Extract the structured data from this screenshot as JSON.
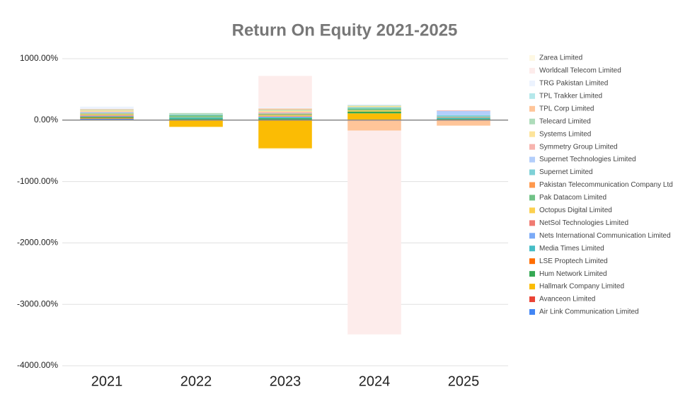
{
  "chart_data": {
    "type": "stacked-bar",
    "title": "Return On Equity 2021-2025",
    "categories": [
      "2021",
      "2022",
      "2023",
      "2024",
      "2025"
    ],
    "ylim": [
      -4000,
      1000
    ],
    "yticks": [
      {
        "value": -4000,
        "label": "-4000.00%"
      },
      {
        "value": -3000,
        "label": "-3000.00%"
      },
      {
        "value": -2000,
        "label": "-2000.00%"
      },
      {
        "value": -1000,
        "label": "-1000.00%"
      },
      {
        "value": 0,
        "label": "0.00%"
      },
      {
        "value": 1000,
        "label": "1000.00%"
      }
    ],
    "grid": true,
    "legend": "right",
    "series": [
      {
        "name": "Air Link Communication Limited",
        "color": "#4285f4",
        "values": [
          20,
          10,
          10,
          10,
          10
        ]
      },
      {
        "name": "Avanceon Limited",
        "color": "#ea4335",
        "values": [
          5,
          0,
          0,
          0,
          0
        ]
      },
      {
        "name": "Hallmark Company Limited",
        "color": "#fbbc04",
        "values": [
          10,
          -110,
          -460,
          100,
          0
        ]
      },
      {
        "name": "Hum Network Limited",
        "color": "#34a853",
        "values": [
          15,
          15,
          20,
          30,
          10
        ]
      },
      {
        "name": "LSE Proptech Limited",
        "color": "#ff6d01",
        "values": [
          5,
          0,
          0,
          0,
          0
        ]
      },
      {
        "name": "Media Times Limited",
        "color": "#46bdc6",
        "values": [
          5,
          20,
          15,
          0,
          20
        ]
      },
      {
        "name": "Nets International Communication Limited",
        "color": "#7baaf7",
        "values": [
          10,
          0,
          10,
          0,
          0
        ]
      },
      {
        "name": "NetSol Technologies Limited",
        "color": "#f07b72",
        "values": [
          10,
          0,
          10,
          0,
          0
        ]
      },
      {
        "name": "Octopus Digital Limited",
        "color": "#fcd04f",
        "values": [
          15,
          5,
          15,
          20,
          0
        ]
      },
      {
        "name": "Pak Datacom Limited",
        "color": "#71c287",
        "values": [
          10,
          30,
          15,
          30,
          0
        ]
      },
      {
        "name": "Pakistan Telecommunication Company Ltd",
        "color": "#ff994d",
        "values": [
          5,
          0,
          10,
          0,
          10
        ]
      },
      {
        "name": "Supernet Limited",
        "color": "#7ed1d7",
        "values": [
          10,
          15,
          10,
          20,
          30
        ]
      },
      {
        "name": "Supernet Technologies Limited",
        "color": "#b3cefb",
        "values": [
          10,
          0,
          0,
          0,
          70
        ]
      },
      {
        "name": "Symmetry Group Limited",
        "color": "#f7b4ae",
        "values": [
          10,
          0,
          20,
          0,
          10
        ]
      },
      {
        "name": "Systems Limited",
        "color": "#fde49b",
        "values": [
          20,
          5,
          20,
          20,
          0
        ]
      },
      {
        "name": "Telecard Limited",
        "color": "#aedcba",
        "values": [
          10,
          15,
          15,
          10,
          0
        ]
      },
      {
        "name": "TPL Corp Limited",
        "color": "#ffc599",
        "values": [
          10,
          0,
          20,
          -170,
          -90
        ]
      },
      {
        "name": "TPL Trakker Limited",
        "color": "#b5e8eb",
        "values": [
          0,
          0,
          0,
          0,
          0
        ]
      },
      {
        "name": "TRG Pakistan Limited",
        "color": "#ecf3fe",
        "values": [
          40,
          0,
          20,
          20,
          0
        ]
      },
      {
        "name": "Worldcall Telecom Limited",
        "color": "#fdeceb",
        "values": [
          0,
          0,
          510,
          -3320,
          0
        ]
      },
      {
        "name": "Zarea Limited",
        "color": "#fef8e3",
        "values": [
          0,
          0,
          -20,
          0,
          0
        ]
      }
    ]
  }
}
